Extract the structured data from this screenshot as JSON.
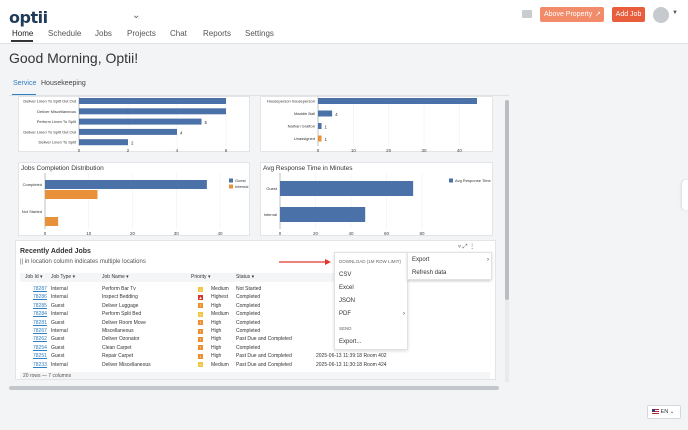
{
  "header": {
    "logo": "optii",
    "property_button": "Above Property",
    "add_job_button": "Add Job",
    "nav": [
      "Home",
      "Schedule",
      "Jobs",
      "Projects",
      "Chat",
      "Reports",
      "Settings"
    ]
  },
  "greeting": "Good Morning, Optii!",
  "subtabs": [
    "Service",
    "Housekeeping"
  ],
  "charts": [
    {
      "type": "bar",
      "title": "",
      "categories": [
        "Deliver Linen To Split Out Out",
        "Deliver Miscellaneous",
        "Perform Linen To Split",
        "Deliver Linen To Split Out Out",
        "Deliver Linen To Split"
      ],
      "values": [
        6,
        6,
        5,
        4,
        2
      ],
      "xlim": [
        0,
        6
      ],
      "xticks": [
        "0",
        "2",
        "4",
        "6"
      ],
      "colors": [
        "#4a72a8"
      ],
      "value_labels": [
        "",
        "",
        "5",
        "4",
        "2"
      ]
    },
    {
      "type": "bar",
      "title": "",
      "categories": [
        "Houseperson houseperson",
        "Maddie Ball",
        "Nathan Grafton",
        "Unassigned"
      ],
      "values": [
        45,
        4,
        1,
        1
      ],
      "xlim": [
        0,
        45
      ],
      "xticks": [
        "0",
        "10",
        "20",
        "30",
        "40"
      ],
      "value_labels": [
        "",
        "4",
        "1",
        "1"
      ],
      "bar_colors": [
        "#4a72a8",
        "#4a72a8",
        "#4a72a8",
        "#e8913a"
      ]
    },
    {
      "type": "bar",
      "title": "Jobs Completion Distribution",
      "categories": [
        "Completed",
        "Not Started"
      ],
      "series": [
        {
          "name": "Guest",
          "values": [
            37,
            0
          ],
          "color": "#4a72a8"
        },
        {
          "name": "Internal",
          "values": [
            12,
            3
          ],
          "color": "#e8913a"
        }
      ],
      "xlim": [
        0,
        40
      ],
      "xticks": [
        "0",
        "10",
        "20",
        "30",
        "40"
      ],
      "legend": "top-right"
    },
    {
      "type": "bar",
      "title": "Avg Response Time in Minutes",
      "categories": [
        "Guest",
        "Internal"
      ],
      "series": [
        {
          "name": "Avg Response Time",
          "values": [
            75,
            48
          ],
          "color": "#4a72a8"
        }
      ],
      "xlim": [
        0,
        80
      ],
      "xticks": [
        "0",
        "20",
        "40",
        "60",
        "80"
      ],
      "legend": "top-right"
    }
  ],
  "recent": {
    "title": "Recently Added Jobs",
    "subtitle": "|| in location column indicates multiple locations",
    "columns": [
      "Job Id",
      "Job Type",
      "Job Name",
      "Priority",
      "Status"
    ],
    "rows": [
      {
        "id": "78287",
        "type": "Internal",
        "name": "Perform Bar Tv",
        "priority": "Medium",
        "status": "Not Started",
        "extra": ""
      },
      {
        "id": "78286",
        "type": "Internal",
        "name": "Inspect Bedding",
        "priority": "Highest",
        "status": "Completed",
        "extra": ""
      },
      {
        "id": "78285",
        "type": "Guest",
        "name": "Deliver Luggage",
        "priority": "High",
        "status": "Completed",
        "extra": ""
      },
      {
        "id": "78284",
        "type": "Internal",
        "name": "Perform Split Bed",
        "priority": "Medium",
        "status": "Completed",
        "extra": ""
      },
      {
        "id": "78281",
        "type": "Guest",
        "name": "Deliver Room Move",
        "priority": "High",
        "status": "Completed",
        "extra": ""
      },
      {
        "id": "78267",
        "type": "Internal",
        "name": "Miscellaneous",
        "priority": "High",
        "status": "Completed",
        "extra": ""
      },
      {
        "id": "78262",
        "type": "Guest",
        "name": "Deliver Ozonator",
        "priority": "High",
        "status": "Past Due and Completed",
        "extra": ""
      },
      {
        "id": "78254",
        "type": "Guest",
        "name": "Clean Carpet",
        "priority": "High",
        "status": "Completed",
        "extra": ""
      },
      {
        "id": "78251",
        "type": "Guest",
        "name": "Repair Carpet",
        "priority": "High",
        "status": "Past Due and Completed",
        "extra": "2025-06-13 11:39:18   Room 402"
      },
      {
        "id": "78233",
        "type": "Internal",
        "name": "Deliver Miscellaneous",
        "priority": "Medium",
        "status": "Past Due and Completed",
        "extra": "2025-06-13 11:30:18   Room 424"
      }
    ],
    "footer": "20 rows — 7 columns"
  },
  "menu": {
    "header": "DOWNLOAD (1M ROW LIMIT)",
    "items": [
      "CSV",
      "Excel",
      "JSON",
      "PDF"
    ],
    "send_header": "SEND",
    "export_more": "Export..."
  },
  "submenu": {
    "items": [
      "Export",
      "Refresh data"
    ]
  },
  "language": "EN"
}
